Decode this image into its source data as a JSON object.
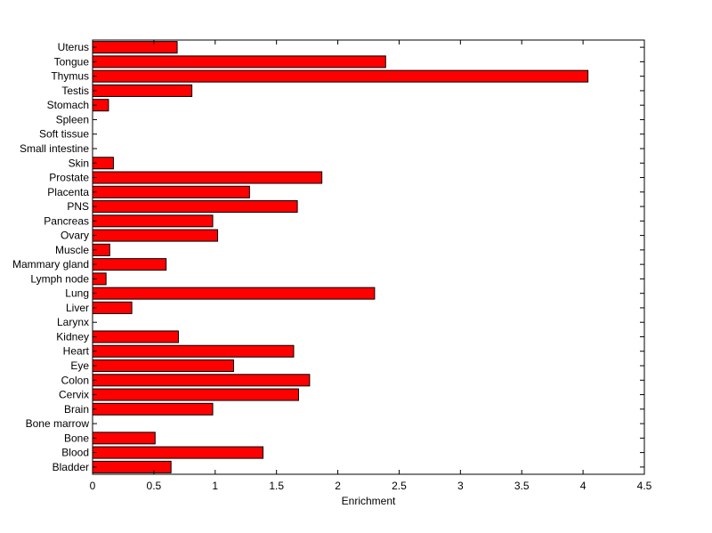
{
  "chart_data": {
    "type": "bar",
    "orientation": "horizontal",
    "title": "",
    "xlabel": "Enrichment",
    "ylabel": "",
    "xlim": [
      0,
      4.5
    ],
    "xticks": [
      "0",
      "0.5",
      "1",
      "1.5",
      "2",
      "2.5",
      "3",
      "3.5",
      "4",
      "4.5"
    ],
    "grid": false,
    "bar_color": "#ff0000",
    "edge_color": "#000000",
    "categories": [
      "Bladder",
      "Blood",
      "Bone",
      "Bone marrow",
      "Brain",
      "Cervix",
      "Colon",
      "Eye",
      "Heart",
      "Kidney",
      "Larynx",
      "Liver",
      "Lung",
      "Lymph node",
      "Mammary gland",
      "Muscle",
      "Ovary",
      "Pancreas",
      "PNS",
      "Placenta",
      "Prostate",
      "Skin",
      "Small intestine",
      "Soft tissue",
      "Spleen",
      "Stomach",
      "Testis",
      "Thymus",
      "Tongue",
      "Uterus"
    ],
    "values": [
      0.64,
      1.39,
      0.51,
      0,
      0.98,
      1.68,
      1.77,
      1.15,
      1.64,
      0.7,
      0,
      0.32,
      2.3,
      0.11,
      0.6,
      0.14,
      1.02,
      0.98,
      1.67,
      1.28,
      1.87,
      0.17,
      0,
      0,
      0,
      0.13,
      0.81,
      4.04,
      2.39,
      0.69
    ]
  }
}
